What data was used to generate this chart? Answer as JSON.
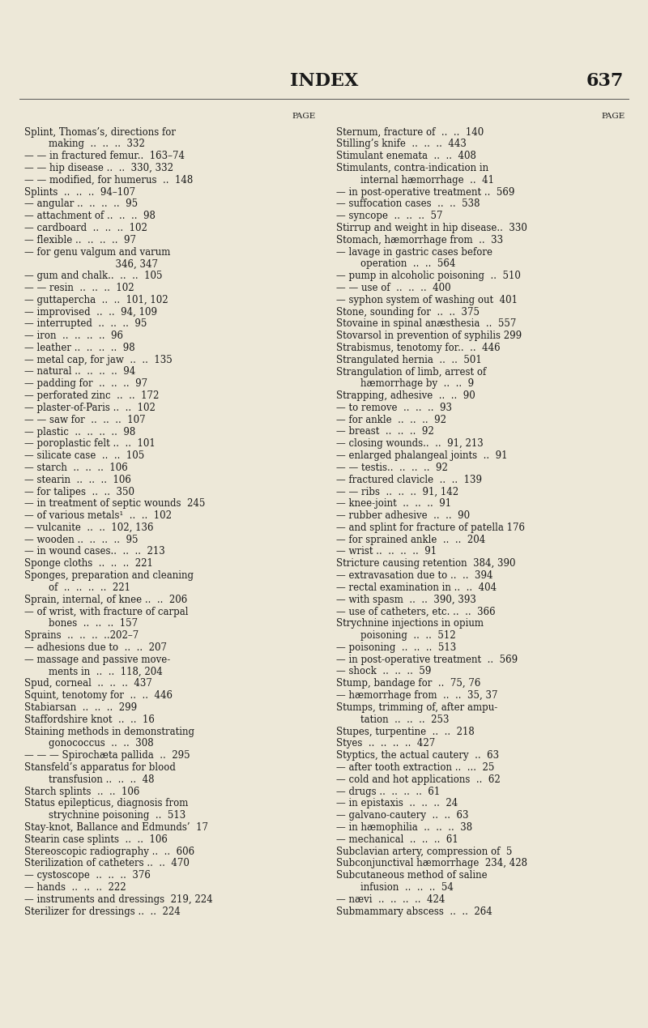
{
  "background_color": "#ede8d8",
  "title": "INDEX",
  "page_number": "637",
  "title_fontsize": 16,
  "body_fontsize": 8.5,
  "page_header_fontsize": 7.5,
  "left_col": [
    "Splint, Thomas’s, directions for",
    "        making  ..  ..  ..  332",
    "— — in fractured femur..  163–74",
    "— — hip disease ..  ..  330, 332",
    "— — modified, for humerus  ..  148",
    "Splints  ..  ..  ..  94–107",
    "— angular ..  ..  ..  ..  95",
    "— attachment of ..  ..  ..  98",
    "— cardboard  ..  ..  ..  102",
    "— flexible ..  ..  ..  ..  97",
    "— for genu valgum and varum",
    "                              346, 347",
    "— gum and chalk..  ..  ..  105",
    "— — resin  ..  ..  ..  102",
    "— guttapercha  ..  ..  101, 102",
    "— improvised  ..  ..  94, 109",
    "— interrupted  ..  ..  ..  95",
    "— iron  ..  ..  ..  ..  96",
    "— leather ..  ..  ..  ..  98",
    "— metal cap, for jaw  ..  ..  135",
    "— natural ..  ..  ..  ..  94",
    "— padding for  ..  ..  ..  97",
    "— perforated zinc  ..  ..  172",
    "— plaster-of-Paris ..  ..  102",
    "— — saw for  ..  ..  ..  107",
    "— plastic  ..  ..  ..  ..  98",
    "— poroplastic felt ..  ..  101",
    "— silicate case  ..  ..  105",
    "— starch  ..  ..  ..  106",
    "— stearin  ..  ..  ..  106",
    "— for talipes  ..  ..  350",
    "— in treatment of septic wounds  245",
    "— of various metals¹  ..  ..  102",
    "— vulcanite  ..  ..  102, 136",
    "— wooden ..  ..  ..  ..  95",
    "— in wound cases..  ..  ..  213",
    "Sponge cloths  ..  ..  ..  221",
    "Sponges, preparation and cleaning",
    "        of  ..  ..  ..  ..  221",
    "Sprain, internal, of knee ..  ..  206",
    "— of wrist, with fracture of carpal",
    "        bones  ..  ..  ..  157",
    "Sprains  ..  ..  ..  ..202–7",
    "— adhesions due to  ..  ..  207",
    "— massage and passive move-",
    "        ments in  ..  ..  118, 204",
    "Spud, corneal  ..  ..  ..  437",
    "Squint, tenotomy for  ..  ..  446",
    "Stabiarsan  ..  ..  ..  299",
    "Staffordshire knot  ..  ..  16",
    "Staining methods in demonstrating",
    "        gonococcus  ..  ..  308",
    "— — — Spirochæta pallida  ..  295",
    "Stansfeld’s apparatus for blood",
    "        transfusion ..  ..  ..  48",
    "Starch splints  ..  ..  106",
    "Status epilepticus, diagnosis from",
    "        strychnine poisoning  ..  513",
    "Stay-knot, Ballance and Edmunds’  17",
    "Stearin case splints  ..  ..  106",
    "Stereoscopic radiography ..  ..  606",
    "Sterilization of catheters ..  ..  470",
    "— cystoscope  ..  ..  ..  376",
    "— hands  ..  ..  ..  222",
    "— instruments and dressings  219, 224",
    "Sterilizer for dressings ..  ..  224"
  ],
  "right_col": [
    "Sternum, fracture of  ..  ..  140",
    "Stilling’s knife  ..  ..  ..  443",
    "Stimulant enemata  ..  ..  408",
    "Stimulants, contra-indication in",
    "        internal hæmorrhage  ..  41",
    "— in post-operative treatment ..  569",
    "— suffocation cases  ..  ..  538",
    "— syncope  ..  ..  ..  57",
    "Stirrup and weight in hip disease..  330",
    "Stomach, hæmorrhage from  ..  33",
    "— lavage in gastric cases before",
    "        operation  ..  ..  564",
    "— pump in alcoholic poisoning  ..  510",
    "— — use of  ..  ..  ..  400",
    "— syphon system of washing out  401",
    "Stone, sounding for  ..  ..  375",
    "Stovaine in spinal anæsthesia  ..  557",
    "Stovarsol in prevention of syphilis 299",
    "Strabismus, tenotomy for..  ..  446",
    "Strangulated hernia  ..  ..  501",
    "Strangulation of limb, arrest of",
    "        hæmorrhage by  ..  ..  9",
    "Strapping, adhesive  ..  ..  90",
    "— to remove  ..  ..  ..  93",
    "— for ankle  ..  ..  ..  92",
    "— breast  ..  ..  ..  92",
    "— closing wounds..  ..  91, 213",
    "— enlarged phalangeal joints  ..  91",
    "— — testis..  ..  ..  ..  92",
    "— fractured clavicle  ..  ..  139",
    "— — ribs  ..  ..  ..  91, 142",
    "— knee-joint  ..  ..  ..  91",
    "— rubber adhesive  ..  ..  90",
    "— and splint for fracture of patella 176",
    "— for sprained ankle  ..  ..  204",
    "— wrist ..  ..  ..  ..  91",
    "Stricture causing retention  384, 390",
    "— extravasation due to ..  ..  394",
    "— rectal examination in ..  ..  404",
    "— with spasm  ..  ..  390, 393",
    "— use of catheters, etc. ..  ..  366",
    "Strychnine injections in opium",
    "        poisoning  ..  ..  512",
    "— poisoning  ..  ..  ..  513",
    "— in post-operative treatment  ..  569",
    "— shock  ..  ..  ..  59",
    "Stump, bandage for  ..  75, 76",
    "— hæmorrhage from  ..  ..  35, 37",
    "Stumps, trimming of, after ampu-",
    "        tation  ..  ..  ..  253",
    "Stupes, turpentine  ..  ..  218",
    "Styes  ..  ..  ..  ..  427",
    "Styptics, the actual cautery  ..  63",
    "— after tooth extraction ..  ...  25",
    "— cold and hot applications  ..  62",
    "— drugs ..  ..  ..  ..  61",
    "— in epistaxis  ..  ..  ..  24",
    "— galvano-cautery  ..  ..  63",
    "— in hæmophilia  ..  ..  ..  38",
    "— mechanical  ..  ..  ..  61",
    "Subclavian artery, compression of  5",
    "Subconjunctival hæmorrhage  234, 428",
    "Subcutaneous method of saline",
    "        infusion  ..  ..  ..  54",
    "— nævi  ..  ..  ..  ..  424",
    "Submammary abscess  ..  ..  264"
  ]
}
